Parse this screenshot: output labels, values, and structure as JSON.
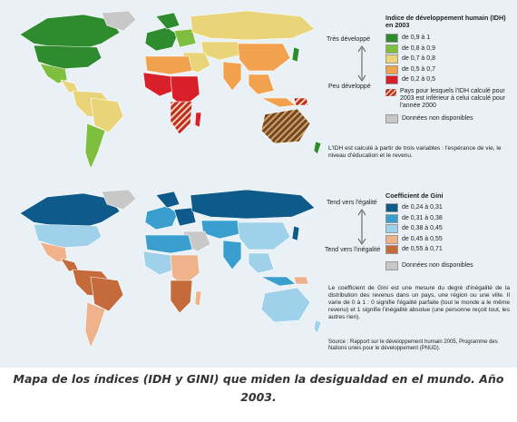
{
  "hdi": {
    "title": "Indice de développement humain (IDH) en 2003",
    "scale_top": "Très développé",
    "scale_bottom": "Peu développé",
    "legend": [
      {
        "label": "de 0,9 à 1",
        "color": "#2e8b2e"
      },
      {
        "label": "de 0,8 à 0,9",
        "color": "#7fbf3f"
      },
      {
        "label": "de 0,7 à 0,8",
        "color": "#ead47a"
      },
      {
        "label": "de 0,5 à 0,7",
        "color": "#f2a24e"
      },
      {
        "label": "de 0,2 à 0,5",
        "color": "#d9202a"
      }
    ],
    "hatch_note": "Pays pour lesquels l'IDH calculé pour 2003 est inférieur à celui calculé pour l'année 2000",
    "no_data": "Données non disponibles",
    "note": "L'IDH est calculé à partir de trois variables : l'espérance de vie, le niveau d'éducation et le revenu."
  },
  "gini": {
    "title": "Coefficient de Gini",
    "scale_top": "Tend vers l'égalité",
    "scale_bottom": "Tend vers l'inégalité",
    "legend": [
      {
        "label": "de 0,24 à 0,31",
        "color": "#0e5a8a"
      },
      {
        "label": "de 0,31 à 0,38",
        "color": "#3a9fcf"
      },
      {
        "label": "de 0,38 à 0,45",
        "color": "#9fd1ea"
      },
      {
        "label": "de 0,45 à 0,55",
        "color": "#efb28a"
      },
      {
        "label": "de 0,55 à 0,71",
        "color": "#c56a3a"
      }
    ],
    "no_data": "Données non disponibles",
    "note": "Le coefficient de Gini est une mesure du degré d'inégalité de la distribution des revenus dans un pays, une région ou une ville. Il varie de 0 à 1 : 0 signifie l'égalité parfaite (tout le monde a le même revenu) et 1 signifie l'inégalité absolue (une personne reçoit tout, les autres rien).",
    "source": "Source : Rapport sur le développement humain 2005, Programme des Nations unies pour le développement (PNUD)."
  },
  "colors": {
    "no_data": "#c8c8c8",
    "hatch_red": "#c0282b",
    "hatch_light": "#f2d6a8",
    "hatch_brown": "#6e4a2a"
  },
  "caption": "Mapa de los índices (IDH y GINI) que miden la desigualdad en el mundo. Año 2003."
}
